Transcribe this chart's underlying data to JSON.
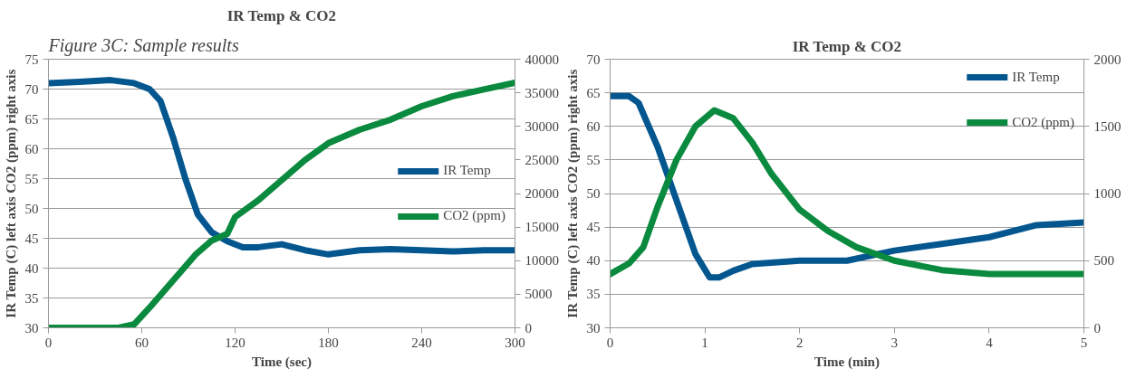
{
  "chart_data": [
    {
      "type": "line",
      "title": "IR Temp & CO2",
      "xlabel": "Time (sec)",
      "ylabel": "IR Temp (C) left axis CO2 (ppm) right axis",
      "annotations": [
        "Figure 3C: Sample results"
      ],
      "xlim": [
        0,
        300
      ],
      "xticks": [
        0,
        60,
        120,
        180,
        240,
        300
      ],
      "ylim": [
        30,
        75
      ],
      "yticks": [
        30,
        35,
        40,
        45,
        50,
        55,
        60,
        65,
        70,
        75
      ],
      "y2lim": [
        0,
        40000
      ],
      "y2ticks": [
        0,
        5000,
        10000,
        15000,
        20000,
        25000,
        30000,
        35000,
        40000
      ],
      "grid": "y",
      "legend": "right",
      "marker": "none",
      "line_style": "solid",
      "series": [
        {
          "name": "IR Temp",
          "color": "#04568f",
          "x": [
            0,
            20,
            40,
            55,
            65,
            72,
            80,
            88,
            96,
            105,
            115,
            125,
            135,
            150,
            165,
            180,
            200,
            220,
            240,
            260,
            280,
            300
          ],
          "values": [
            71,
            71.2,
            71.5,
            71,
            70,
            68,
            62,
            55,
            49,
            46,
            44.5,
            43.5,
            43.5,
            44,
            43,
            42.3,
            43,
            43.2,
            43,
            42.8,
            43,
            43
          ]
        },
        {
          "name": "CO2 (ppm)",
          "color": "#0a8a3e",
          "axis": "y2",
          "x": [
            0,
            45,
            55,
            65,
            80,
            95,
            105,
            115,
            118,
            120,
            135,
            150,
            165,
            180,
            200,
            220,
            240,
            260,
            280,
            300
          ],
          "values": [
            0,
            0,
            500,
            3000,
            7000,
            11000,
            13000,
            14000,
            15500,
            16500,
            19000,
            22000,
            25000,
            27500,
            29500,
            31000,
            33000,
            34500,
            35500,
            36500
          ]
        }
      ]
    },
    {
      "type": "line",
      "title": "IR Temp & CO2",
      "xlabel": "Time (min)",
      "ylabel": "IR Temp (C) left axis CO2 (ppm) right axis",
      "xlim": [
        0,
        5
      ],
      "xticks": [
        0,
        1,
        2,
        3,
        4,
        5
      ],
      "ylim": [
        30,
        70
      ],
      "yticks": [
        30,
        35,
        40,
        45,
        50,
        55,
        60,
        65,
        70
      ],
      "y2lim": [
        0,
        2000
      ],
      "y2ticks": [
        0,
        500,
        1000,
        1500,
        2000
      ],
      "grid": "y",
      "legend": "top right",
      "marker": "none",
      "line_style": "solid",
      "series": [
        {
          "name": "IR Temp",
          "color": "#04568f",
          "x": [
            0,
            0.2,
            0.3,
            0.5,
            0.7,
            0.9,
            1.05,
            1.15,
            1.3,
            1.5,
            2,
            2.5,
            3,
            3.5,
            4,
            4.5,
            5
          ],
          "values": [
            64.5,
            64.5,
            63.5,
            57,
            49,
            41,
            37.5,
            37.5,
            38.5,
            39.5,
            40,
            40,
            41.5,
            42.5,
            43.5,
            45.3,
            45.7
          ]
        },
        {
          "name": "CO2 (ppm)",
          "color": "#0a8a3e",
          "axis": "y2",
          "x": [
            0,
            0.2,
            0.35,
            0.5,
            0.7,
            0.9,
            1.1,
            1.3,
            1.5,
            1.7,
            2,
            2.3,
            2.6,
            3,
            3.5,
            4,
            4.5,
            5
          ],
          "values": [
            400,
            480,
            600,
            900,
            1250,
            1500,
            1620,
            1560,
            1380,
            1150,
            880,
            720,
            600,
            500,
            430,
            400,
            400,
            400
          ]
        }
      ]
    }
  ]
}
